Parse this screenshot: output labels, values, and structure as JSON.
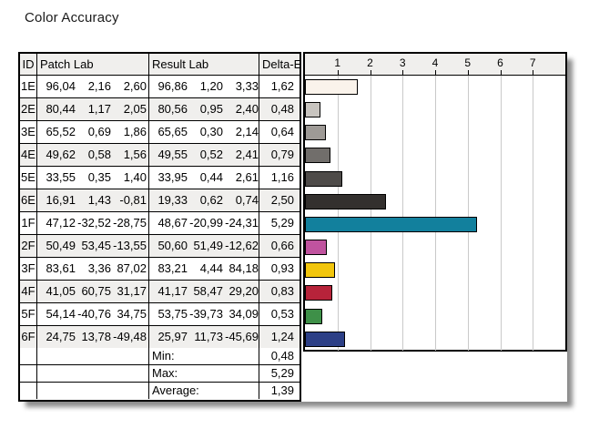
{
  "title": "Color Accuracy",
  "table": {
    "headers": {
      "id": "ID",
      "patch": "Patch Lab",
      "result": "Result Lab",
      "delta": "Delta-E"
    },
    "rows": [
      {
        "id": "1E",
        "patch": [
          "96,04",
          "2,16",
          "2,60"
        ],
        "result": [
          "96,86",
          "1,20",
          "3,33"
        ],
        "delta": "1,62"
      },
      {
        "id": "2E",
        "patch": [
          "80,44",
          "1,17",
          "2,05"
        ],
        "result": [
          "80,56",
          "0,95",
          "2,40"
        ],
        "delta": "0,48"
      },
      {
        "id": "3E",
        "patch": [
          "65,52",
          "0,69",
          "1,86"
        ],
        "result": [
          "65,65",
          "0,30",
          "2,14"
        ],
        "delta": "0,64"
      },
      {
        "id": "4E",
        "patch": [
          "49,62",
          "0,58",
          "1,56"
        ],
        "result": [
          "49,55",
          "0,52",
          "2,41"
        ],
        "delta": "0,79"
      },
      {
        "id": "5E",
        "patch": [
          "33,55",
          "0,35",
          "1,40"
        ],
        "result": [
          "33,95",
          "0,44",
          "2,61"
        ],
        "delta": "1,16"
      },
      {
        "id": "6E",
        "patch": [
          "16,91",
          "1,43",
          "-0,81"
        ],
        "result": [
          "19,33",
          "0,62",
          "0,74"
        ],
        "delta": "2,50"
      },
      {
        "id": "1F",
        "patch": [
          "47,12",
          "-32,52",
          "-28,75"
        ],
        "result": [
          "48,67",
          "-20,99",
          "-24,31"
        ],
        "delta": "5,29"
      },
      {
        "id": "2F",
        "patch": [
          "50,49",
          "53,45",
          "-13,55"
        ],
        "result": [
          "50,60",
          "51,49",
          "-12,62"
        ],
        "delta": "0,66"
      },
      {
        "id": "3F",
        "patch": [
          "83,61",
          "3,36",
          "87,02"
        ],
        "result": [
          "83,21",
          "4,44",
          "84,18"
        ],
        "delta": "0,93"
      },
      {
        "id": "4F",
        "patch": [
          "41,05",
          "60,75",
          "31,17"
        ],
        "result": [
          "41,17",
          "58,47",
          "29,20"
        ],
        "delta": "0,83"
      },
      {
        "id": "5F",
        "patch": [
          "54,14",
          "-40,76",
          "34,75"
        ],
        "result": [
          "53,75",
          "-39,73",
          "34,09"
        ],
        "delta": "0,53"
      },
      {
        "id": "6F",
        "patch": [
          "24,75",
          "13,78",
          "-49,48"
        ],
        "result": [
          "25,97",
          "11,73",
          "-45,69"
        ],
        "delta": "1,24"
      }
    ],
    "summary": [
      {
        "label": "Min:",
        "value": "0,48"
      },
      {
        "label": "Max:",
        "value": "5,29"
      },
      {
        "label": "Average:",
        "value": "1,39"
      }
    ]
  },
  "chart_data": {
    "type": "bar",
    "orientation": "horizontal",
    "title": "Color Accuracy",
    "xlabel": "Delta-E",
    "xlim": [
      0,
      8
    ],
    "xticks": [
      1,
      2,
      3,
      4,
      5,
      6,
      7
    ],
    "grid": true,
    "categories": [
      "1E",
      "2E",
      "3E",
      "4E",
      "5E",
      "6E",
      "1F",
      "2F",
      "3F",
      "4F",
      "5F",
      "6F"
    ],
    "values": [
      1.62,
      0.48,
      0.64,
      0.79,
      1.16,
      2.5,
      5.29,
      0.66,
      0.93,
      0.83,
      0.53,
      1.24
    ],
    "bar_colors": [
      "#faf3eb",
      "#c8c4bf",
      "#9e9a96",
      "#716e6b",
      "#4e4b49",
      "#33302e",
      "#12809d",
      "#c0539f",
      "#f2c60d",
      "#b7233a",
      "#3e9048",
      "#2c3f86"
    ],
    "min": 0.48,
    "max": 5.29,
    "average": 1.39
  },
  "colors": {
    "header_bg": "#f0efed",
    "alt_row_bg": "#f0efed",
    "gridline": "#c9c9c9",
    "border": "#000000"
  }
}
